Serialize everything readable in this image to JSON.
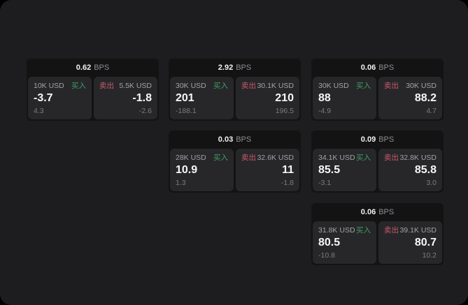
{
  "labels": {
    "bps": "BPS",
    "buy": "买入",
    "sell": "卖出"
  },
  "colors": {
    "frame_bg": "#1d1d1f",
    "card_bg": "#131314",
    "panel_bg": "#272729",
    "buy_green": "#3e9e64",
    "sell_red": "#c65a6d",
    "value_white": "#f7f7f7",
    "label_gray": "#a3a3a7",
    "sub_gray": "#7c7c80"
  },
  "cards": [
    {
      "bps": "0.62",
      "buy": {
        "size": "10K USD",
        "value": "-3.7",
        "sub": "4.3"
      },
      "sell": {
        "size": "5.5K USD",
        "value": "-1.8",
        "sub": "-2.6"
      }
    },
    {
      "bps": "2.92",
      "buy": {
        "size": "30K USD",
        "value": "201",
        "sub": "-188.1"
      },
      "sell": {
        "size": "30.1K USD",
        "value": "210",
        "sub": "196.5"
      }
    },
    {
      "bps": "0.06",
      "buy": {
        "size": "30K USD",
        "value": "88",
        "sub": "-4.9"
      },
      "sell": {
        "size": "30K USD",
        "value": "88.2",
        "sub": "4.7"
      }
    },
    {
      "bps": "0.03",
      "buy": {
        "size": "28K USD",
        "value": "10.9",
        "sub": "1.3"
      },
      "sell": {
        "size": "32.6K USD",
        "value": "11",
        "sub": "-1.8"
      }
    },
    {
      "bps": "0.09",
      "buy": {
        "size": "34.1K USD",
        "value": "85.5",
        "sub": "-3.1"
      },
      "sell": {
        "size": "32.8K USD",
        "value": "85.8",
        "sub": "3.0"
      }
    },
    {
      "bps": "0.06",
      "buy": {
        "size": "31.8K USD",
        "value": "80.5",
        "sub": "-10.8"
      },
      "sell": {
        "size": "39.1K USD",
        "value": "80.7",
        "sub": "10.2"
      }
    }
  ]
}
